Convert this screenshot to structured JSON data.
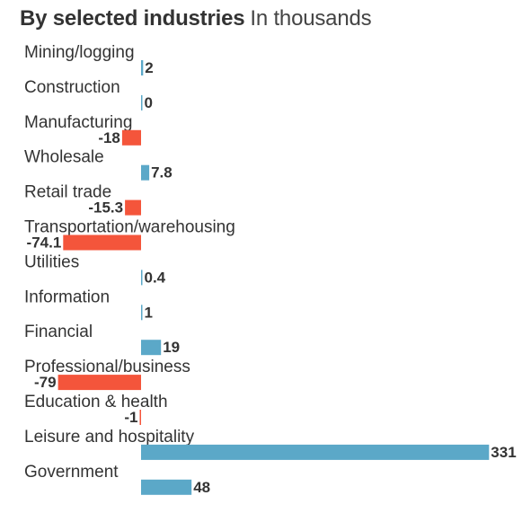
{
  "header": {
    "title": "By selected industries",
    "subtitle": "In thousands"
  },
  "colors": {
    "positive": "#5ba8c8",
    "negative": "#f4553b",
    "label": "#333333"
  },
  "chart_data": {
    "type": "bar",
    "orientation": "horizontal",
    "title": "By selected industries",
    "subtitle": "In thousands",
    "categories": [
      "Mining/logging",
      "Construction",
      "Manufacturing",
      "Wholesale",
      "Retail trade",
      "Transportation/warehousing",
      "Utilities",
      "Information",
      "Financial",
      "Professional/business",
      "Education & health",
      "Leisure and hospitality",
      "Government"
    ],
    "values": [
      2,
      0,
      -18,
      7.8,
      -15.3,
      -74.1,
      0.4,
      1,
      19,
      -79,
      -1,
      331,
      48
    ],
    "value_labels": [
      "2",
      "0",
      "-18",
      "7.8",
      "-15.3",
      "-74.1",
      "0.4",
      "1",
      "19",
      "-79",
      "-1",
      "331",
      "48"
    ],
    "grid": false,
    "legend": "none"
  }
}
